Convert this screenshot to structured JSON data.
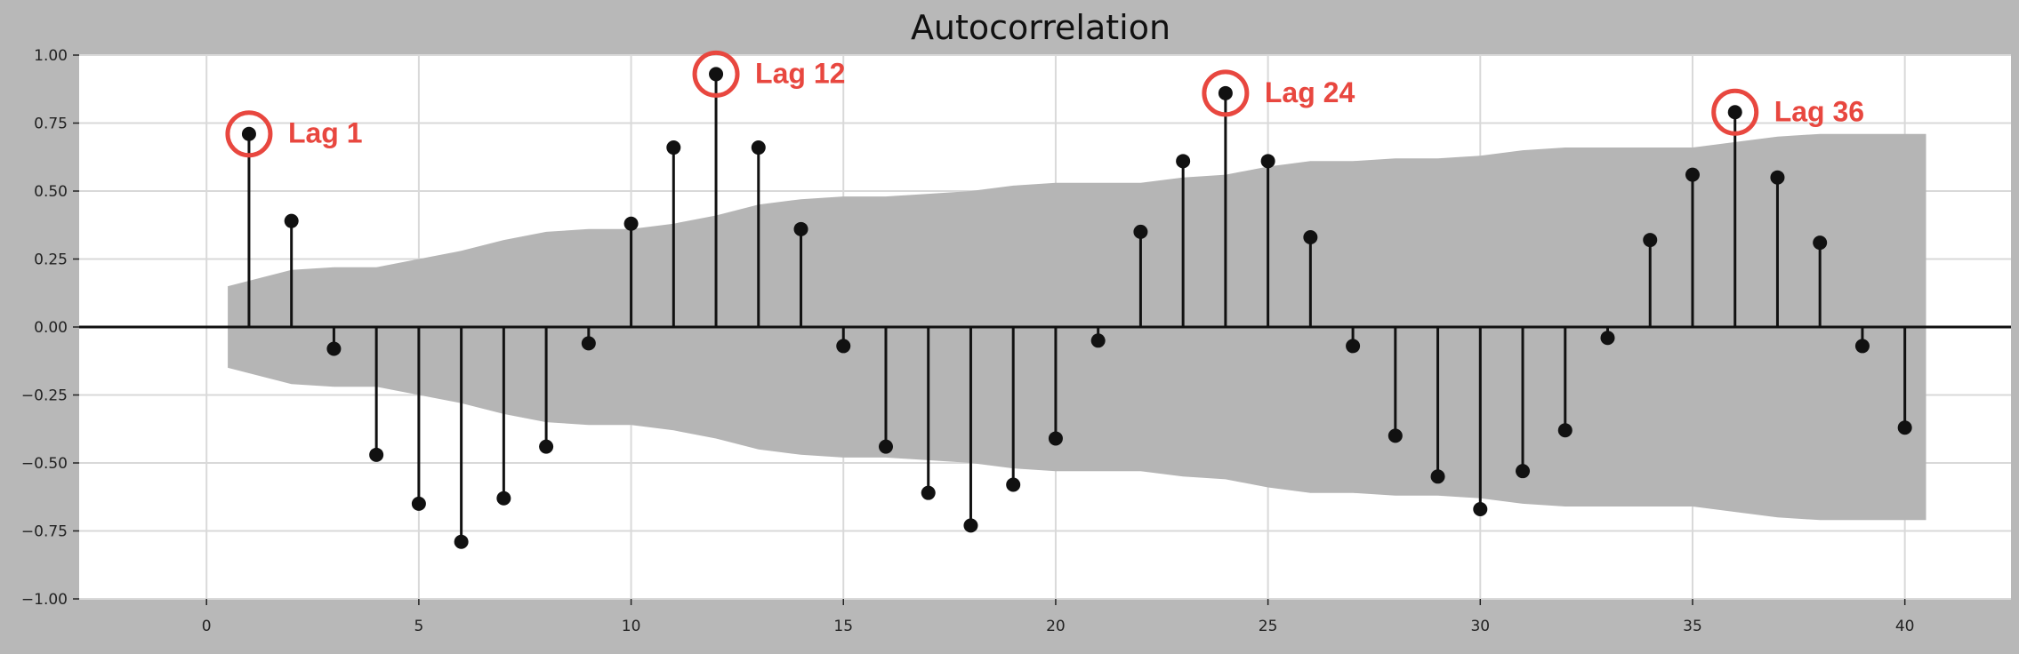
{
  "chart_data": {
    "type": "stem",
    "title": "Autocorrelation",
    "xlabel": "",
    "ylabel": "",
    "xlim": [
      -3,
      42.5
    ],
    "ylim": [
      -1.0,
      1.0
    ],
    "xticks": [
      0,
      5,
      10,
      15,
      20,
      25,
      30,
      35,
      40
    ],
    "xtick_labels": [
      "0",
      "5",
      "10",
      "15",
      "20",
      "25",
      "30",
      "35",
      "40"
    ],
    "yticks": [
      1.0,
      0.75,
      0.5,
      0.25,
      0.0,
      -0.25,
      -0.5,
      -0.75,
      -1.0
    ],
    "ytick_labels": [
      "1.00",
      "0.75",
      "0.50",
      "0.25",
      "0.00",
      "−0.25",
      "−0.50",
      "−0.75",
      "−1.00"
    ],
    "grid": true,
    "lags": [
      1,
      2,
      3,
      4,
      5,
      6,
      7,
      8,
      9,
      10,
      11,
      12,
      13,
      14,
      15,
      16,
      17,
      18,
      19,
      20,
      21,
      22,
      23,
      24,
      25,
      26,
      27,
      28,
      29,
      30,
      31,
      32,
      33,
      34,
      35,
      36,
      37,
      38,
      39,
      40
    ],
    "values": [
      0.71,
      0.39,
      -0.08,
      -0.47,
      -0.65,
      -0.79,
      -0.63,
      -0.44,
      -0.06,
      0.38,
      0.66,
      0.93,
      0.66,
      0.36,
      -0.07,
      -0.44,
      -0.61,
      -0.73,
      -0.58,
      -0.41,
      -0.05,
      0.35,
      0.61,
      0.86,
      0.61,
      0.33,
      -0.07,
      -0.4,
      -0.55,
      -0.67,
      -0.53,
      -0.38,
      -0.04,
      0.32,
      0.56,
      0.79,
      0.55,
      0.31,
      -0.07,
      -0.37
    ],
    "confidence_band": {
      "lags": [
        0.5,
        1,
        2,
        3,
        4,
        5,
        6,
        7,
        8,
        9,
        10,
        11,
        12,
        13,
        14,
        15,
        16,
        17,
        18,
        19,
        20,
        21,
        22,
        23,
        24,
        25,
        26,
        27,
        28,
        29,
        30,
        31,
        32,
        33,
        34,
        35,
        36,
        37,
        38,
        39,
        40,
        40.5
      ],
      "upper": [
        0.15,
        0.17,
        0.21,
        0.22,
        0.22,
        0.25,
        0.28,
        0.32,
        0.35,
        0.36,
        0.36,
        0.38,
        0.41,
        0.45,
        0.47,
        0.48,
        0.48,
        0.49,
        0.5,
        0.52,
        0.53,
        0.53,
        0.53,
        0.55,
        0.56,
        0.59,
        0.61,
        0.61,
        0.62,
        0.62,
        0.63,
        0.65,
        0.66,
        0.66,
        0.66,
        0.66,
        0.68,
        0.7,
        0.71,
        0.71,
        0.71,
        0.71
      ],
      "color": "#b5b5b5"
    },
    "annotations": [
      {
        "lag": 1,
        "value": 0.71,
        "label": "Lag 1"
      },
      {
        "lag": 12,
        "value": 0.93,
        "label": "Lag 12"
      },
      {
        "lag": 24,
        "value": 0.86,
        "label": "Lag 24"
      },
      {
        "lag": 36,
        "value": 0.79,
        "label": "Lag 36"
      }
    ],
    "colors": {
      "stem": "#111111",
      "plot_background": "#ffffff",
      "figure_background": "#b8b8b8",
      "annotation": "#e8473f",
      "grid": "#d9d9d9"
    }
  }
}
